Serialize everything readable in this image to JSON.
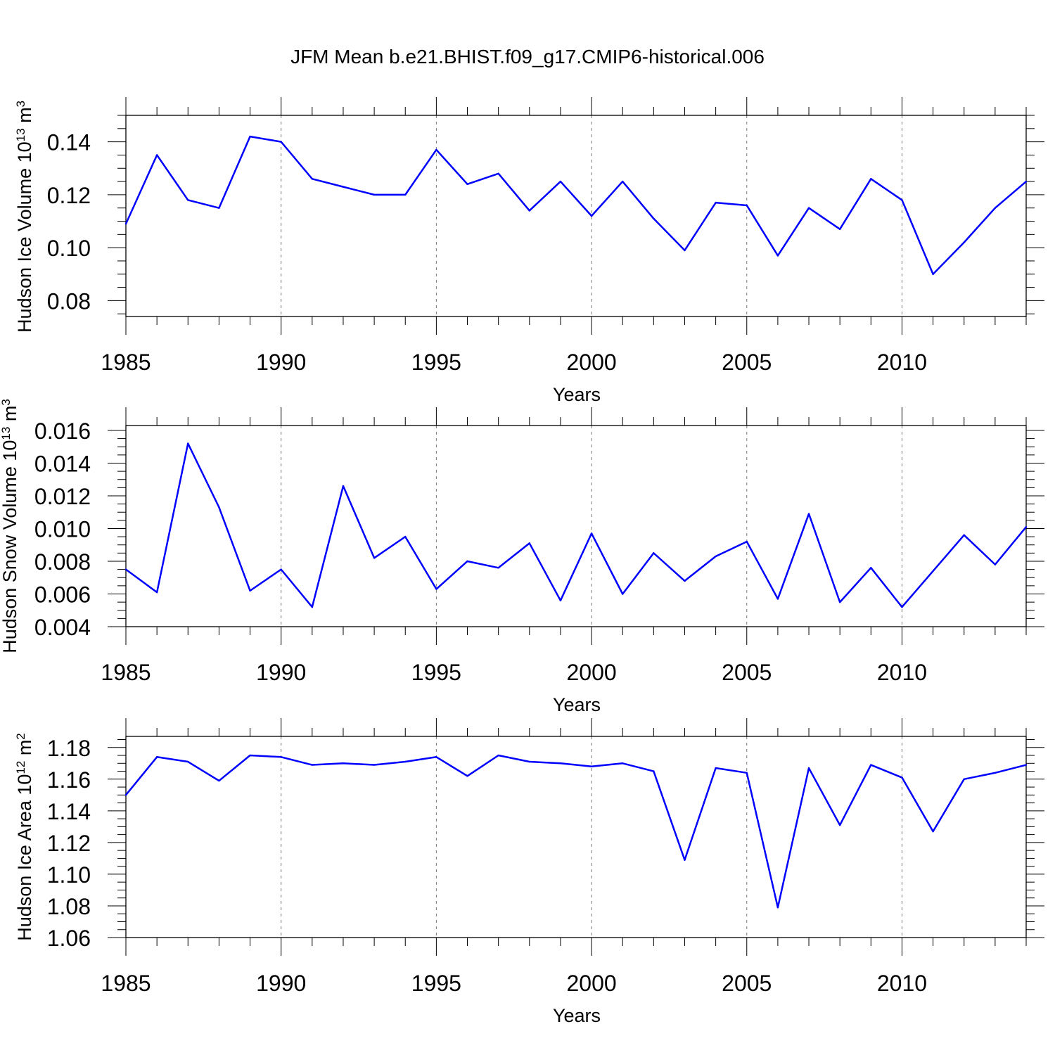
{
  "title": "JFM Mean b.e21.BHIST.f09_g17.CMIP6-historical.006",
  "colors": {
    "series": "#0000ff",
    "axes": "#000000",
    "grid": "#777777"
  },
  "chart_data": [
    {
      "type": "line",
      "title": "",
      "xlabel": "Years",
      "ylabel_main": "Hudson Ice Volume 10",
      "ylabel_exp": "13",
      "ylabel_unit": " m",
      "ylabel_unit_exp": "3",
      "xlim": [
        1985,
        2014
      ],
      "ylim": [
        0.074,
        0.15
      ],
      "xticks": [
        1985,
        1990,
        1995,
        2000,
        2005,
        2010
      ],
      "xtick_labels": [
        "1985",
        "1990",
        "1995",
        "2000",
        "2005",
        "2010"
      ],
      "yticks": [
        0.08,
        0.1,
        0.12,
        0.14
      ],
      "ytick_labels": [
        "0.08",
        "0.10",
        "0.12",
        "0.14"
      ],
      "yminor_step": 0.005,
      "grid": "vertical-dashed",
      "x": [
        1985,
        1986,
        1987,
        1988,
        1989,
        1990,
        1991,
        1992,
        1993,
        1994,
        1995,
        1996,
        1997,
        1998,
        1999,
        2000,
        2001,
        2002,
        2003,
        2004,
        2005,
        2006,
        2007,
        2008,
        2009,
        2010,
        2011,
        2012,
        2013,
        2014
      ],
      "values": [
        0.109,
        0.135,
        0.118,
        0.115,
        0.142,
        0.14,
        0.126,
        0.123,
        0.12,
        0.12,
        0.137,
        0.124,
        0.128,
        0.114,
        0.125,
        0.112,
        0.125,
        0.111,
        0.099,
        0.117,
        0.116,
        0.097,
        0.115,
        0.107,
        0.126,
        0.118,
        0.09,
        0.102,
        0.115,
        0.125
      ]
    },
    {
      "type": "line",
      "title": "",
      "xlabel": "Years",
      "ylabel_main": "Hudson Snow Volume 10",
      "ylabel_exp": "13",
      "ylabel_unit": " m",
      "ylabel_unit_exp": "3",
      "xlim": [
        1985,
        2014
      ],
      "ylim": [
        0.004,
        0.0163
      ],
      "xticks": [
        1985,
        1990,
        1995,
        2000,
        2005,
        2010
      ],
      "xtick_labels": [
        "1985",
        "1990",
        "1995",
        "2000",
        "2005",
        "2010"
      ],
      "yticks": [
        0.004,
        0.006,
        0.008,
        0.01,
        0.012,
        0.014,
        0.016
      ],
      "ytick_labels": [
        "0.004",
        "0.006",
        "0.008",
        "0.010",
        "0.012",
        "0.014",
        "0.016"
      ],
      "yminor_step": 0.0005,
      "grid": "vertical-dashed",
      "x": [
        1985,
        1986,
        1987,
        1988,
        1989,
        1990,
        1991,
        1992,
        1993,
        1994,
        1995,
        1996,
        1997,
        1998,
        1999,
        2000,
        2001,
        2002,
        2003,
        2004,
        2005,
        2006,
        2007,
        2008,
        2009,
        2010,
        2011,
        2012,
        2013,
        2014
      ],
      "values": [
        0.0075,
        0.0061,
        0.0152,
        0.0113,
        0.0062,
        0.0075,
        0.0052,
        0.0126,
        0.0082,
        0.0095,
        0.0063,
        0.008,
        0.0076,
        0.0091,
        0.0056,
        0.0097,
        0.006,
        0.0085,
        0.0068,
        0.0083,
        0.0092,
        0.0057,
        0.0109,
        0.0055,
        0.0076,
        0.0052,
        0.0074,
        0.0096,
        0.0078,
        0.0101
      ]
    },
    {
      "type": "line",
      "title": "",
      "xlabel": "Years",
      "ylabel_main": "Hudson Ice Area 10",
      "ylabel_exp": "12",
      "ylabel_unit": " m",
      "ylabel_unit_exp": "2",
      "xlim": [
        1985,
        2014
      ],
      "ylim": [
        1.06,
        1.187
      ],
      "xticks": [
        1985,
        1990,
        1995,
        2000,
        2005,
        2010
      ],
      "xtick_labels": [
        "1985",
        "1990",
        "1995",
        "2000",
        "2005",
        "2010"
      ],
      "yticks": [
        1.06,
        1.08,
        1.1,
        1.12,
        1.14,
        1.16,
        1.18
      ],
      "ytick_labels": [
        "1.06",
        "1.08",
        "1.10",
        "1.12",
        "1.14",
        "1.16",
        "1.18"
      ],
      "yminor_step": 0.005,
      "grid": "vertical-dashed",
      "x": [
        1985,
        1986,
        1987,
        1988,
        1989,
        1990,
        1991,
        1992,
        1993,
        1994,
        1995,
        1996,
        1997,
        1998,
        1999,
        2000,
        2001,
        2002,
        2003,
        2004,
        2005,
        2006,
        2007,
        2008,
        2009,
        2010,
        2011,
        2012,
        2013,
        2014
      ],
      "values": [
        1.15,
        1.174,
        1.171,
        1.159,
        1.175,
        1.174,
        1.169,
        1.17,
        1.169,
        1.171,
        1.174,
        1.162,
        1.175,
        1.171,
        1.17,
        1.168,
        1.17,
        1.165,
        1.109,
        1.167,
        1.164,
        1.079,
        1.167,
        1.131,
        1.169,
        1.161,
        1.127,
        1.16,
        1.164,
        1.169
      ]
    }
  ]
}
